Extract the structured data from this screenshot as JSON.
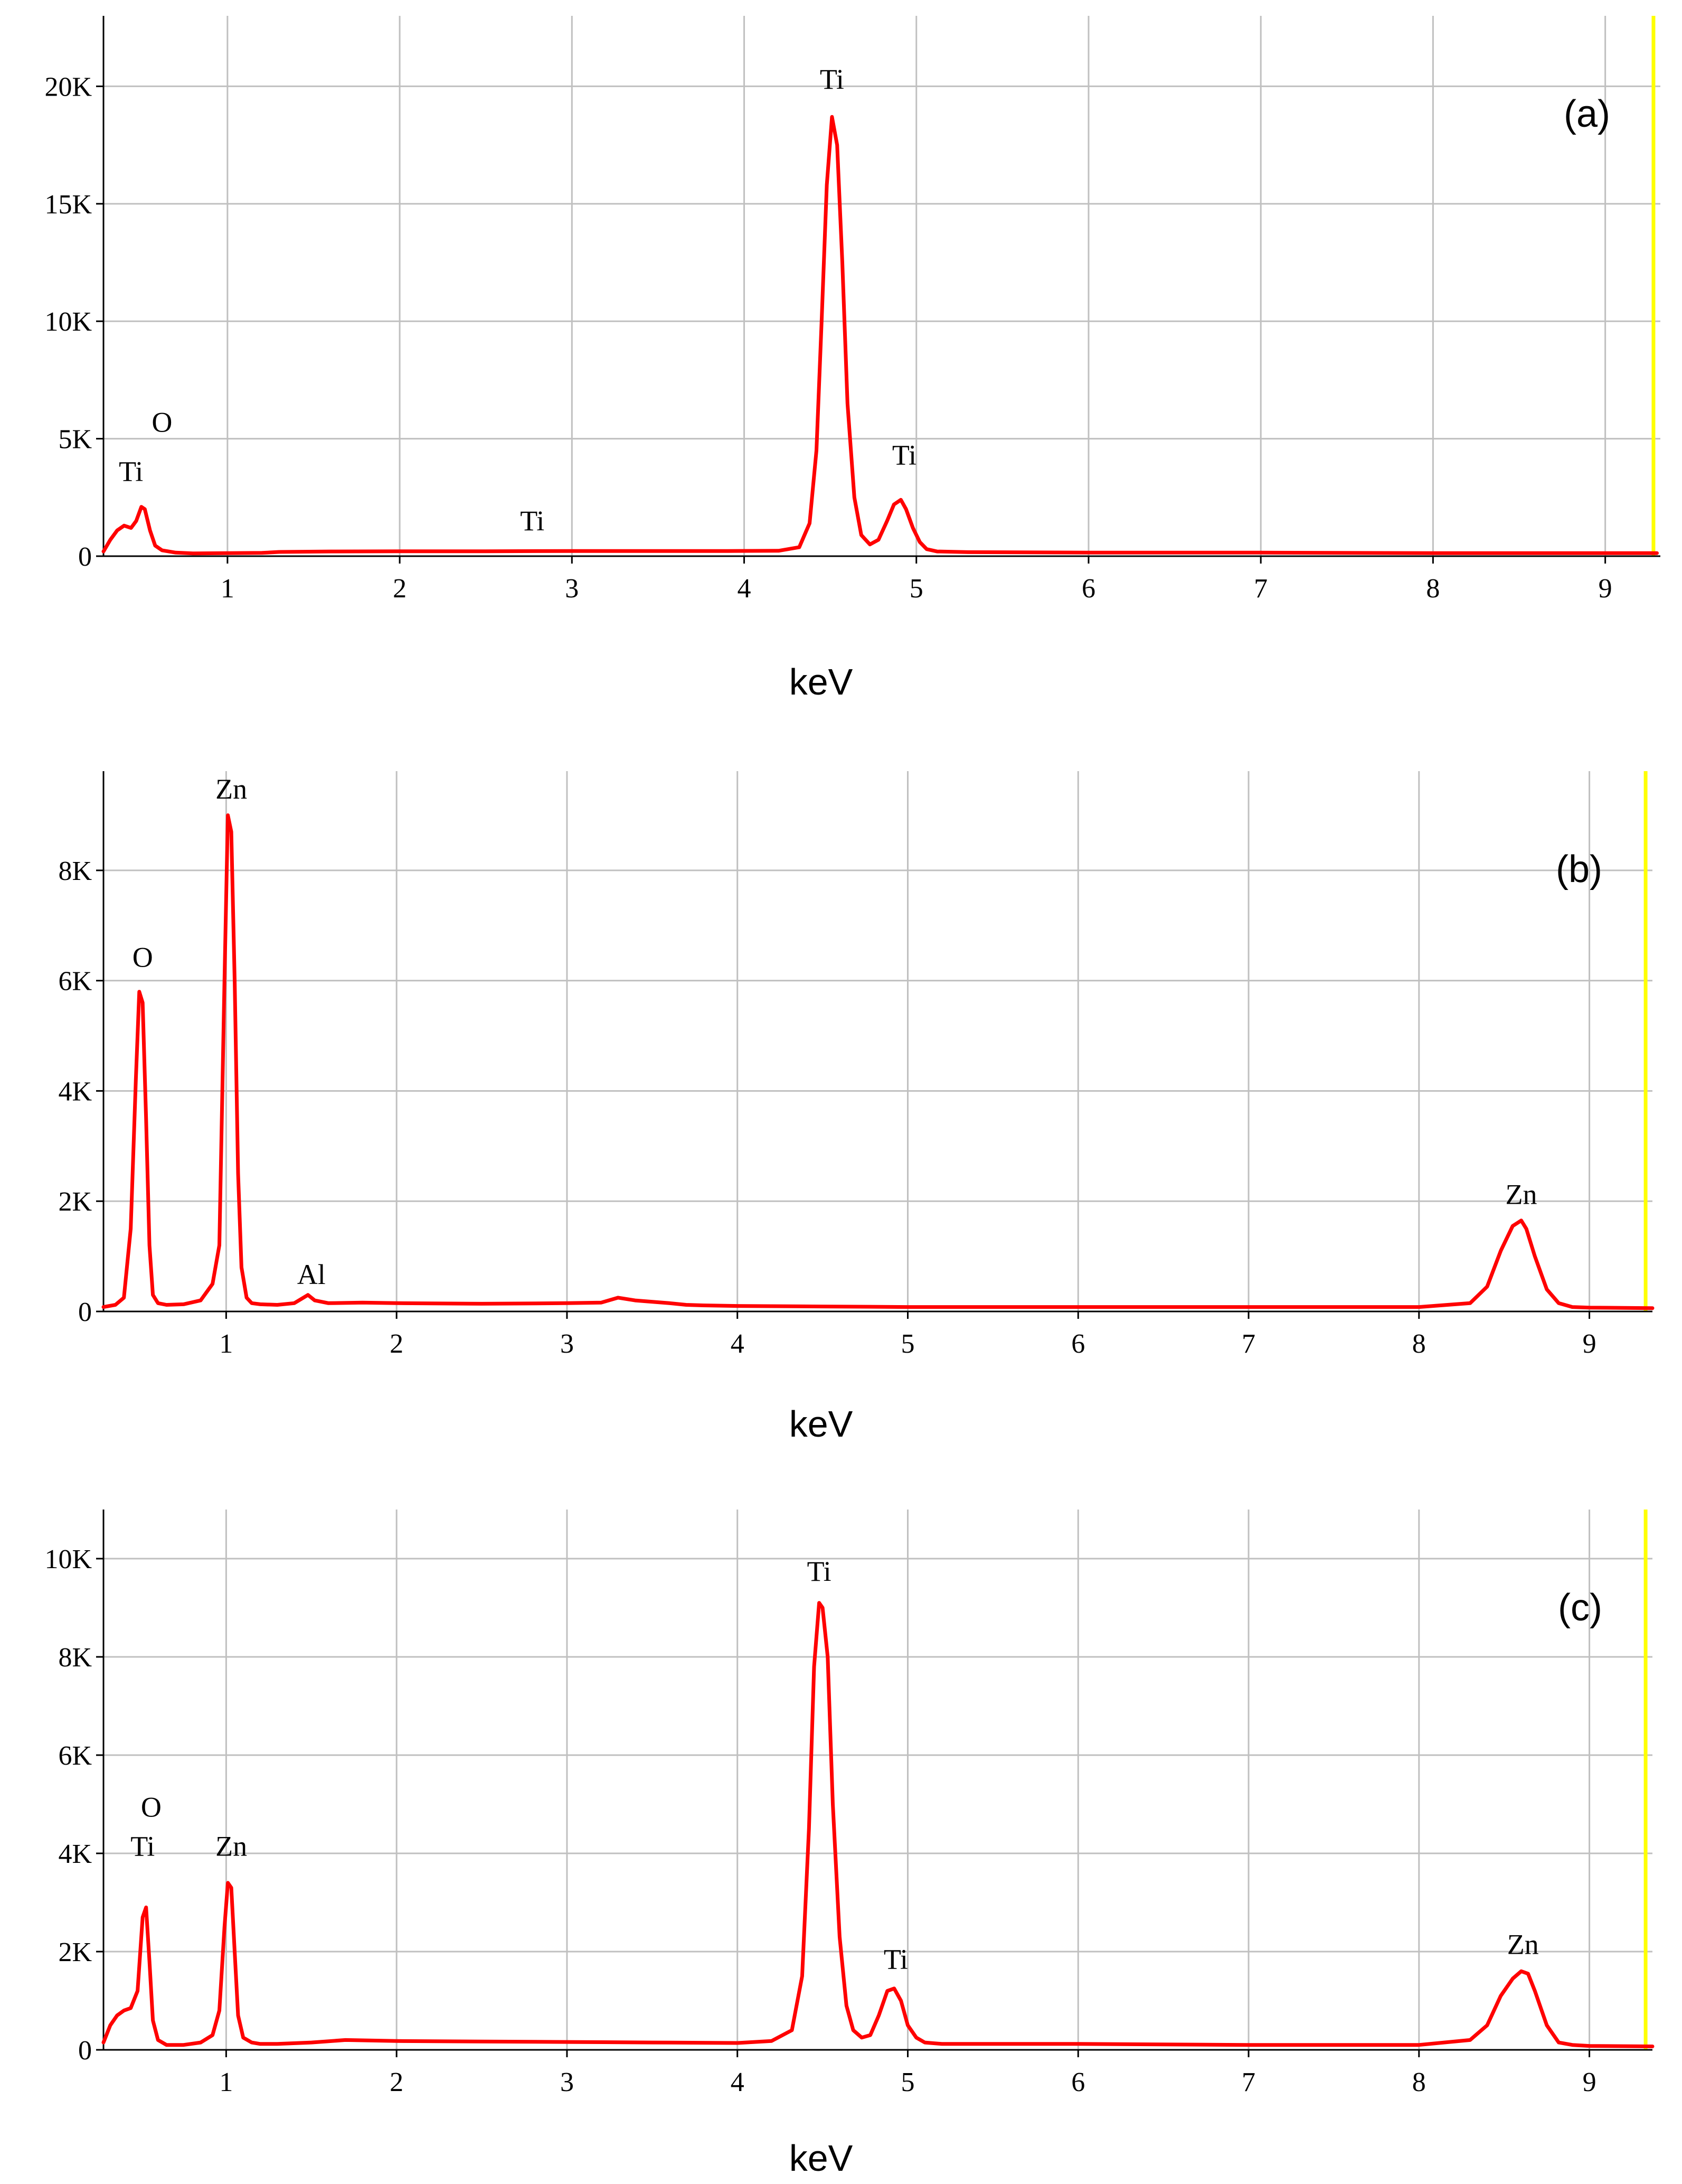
{
  "figure": {
    "background": "#ffffff"
  },
  "style": {
    "line_color": "#ff0000",
    "grid_color": "#c0c0c0",
    "axis_color": "#000000",
    "end_marker_color": "#ffff00"
  },
  "chart_data": [
    {
      "type": "line",
      "panel_label": "(a)",
      "xlabel": "keV",
      "ylabel": "",
      "xlim": [
        0.28,
        9.32
      ],
      "ylim": [
        0,
        23000
      ],
      "xticks": [
        1,
        2,
        3,
        4,
        5,
        6,
        7,
        8,
        9
      ],
      "xtick_labels": [
        "1",
        "2",
        "3",
        "4",
        "5",
        "6",
        "7",
        "8",
        "9"
      ],
      "yticks": [
        0,
        5000,
        10000,
        15000,
        20000
      ],
      "ytick_labels": [
        "0",
        "5K",
        "10K",
        "15K",
        "20K"
      ],
      "grid": true,
      "end_marker_kev": 9.28,
      "series": [
        {
          "x": [
            0.28,
            0.32,
            0.36,
            0.4,
            0.44,
            0.47,
            0.5,
            0.52,
            0.55,
            0.58,
            0.62,
            0.7,
            0.8,
            1.0,
            1.2,
            1.3,
            1.6,
            2.0,
            2.5,
            3.0,
            3.5,
            3.9,
            4.2,
            4.32,
            4.38,
            4.42,
            4.45,
            4.48,
            4.51,
            4.54,
            4.57,
            4.6,
            4.64,
            4.68,
            4.73,
            4.78,
            4.83,
            4.87,
            4.91,
            4.94,
            4.98,
            5.02,
            5.06,
            5.12,
            5.3,
            6.0,
            7.0,
            8.0,
            9.0,
            9.3
          ],
          "y": [
            200,
            700,
            1100,
            1300,
            1200,
            1500,
            2100,
            2000,
            1100,
            450,
            250,
            150,
            120,
            130,
            140,
            180,
            200,
            210,
            210,
            220,
            220,
            220,
            230,
            380,
            1400,
            4500,
            10000,
            15800,
            18700,
            17500,
            12500,
            6500,
            2500,
            900,
            500,
            700,
            1500,
            2200,
            2400,
            2000,
            1200,
            600,
            300,
            200,
            170,
            150,
            150,
            130,
            130,
            130
          ]
        }
      ],
      "annotations": [
        {
          "text": "Ti",
          "x": 4.51,
          "y": 19900
        },
        {
          "text": "Ti",
          "x": 4.93,
          "y": 3900
        },
        {
          "text": "O",
          "x": 0.62,
          "y": 5300
        },
        {
          "text": "Ti",
          "x": 0.44,
          "y": 3200
        },
        {
          "text": "Ti",
          "x": 2.77,
          "y": 1100
        }
      ]
    },
    {
      "type": "line",
      "panel_label": "(b)",
      "xlabel": "keV",
      "ylabel": "",
      "xlim": [
        0.28,
        9.37
      ],
      "ylim": [
        0,
        9800
      ],
      "xticks": [
        1,
        2,
        3,
        4,
        5,
        6,
        7,
        8,
        9
      ],
      "xtick_labels": [
        "1",
        "2",
        "3",
        "4",
        "5",
        "6",
        "7",
        "8",
        "9"
      ],
      "yticks": [
        0,
        2000,
        4000,
        6000,
        8000
      ],
      "ytick_labels": [
        "0",
        "2K",
        "4K",
        "6K",
        "8K"
      ],
      "grid": true,
      "end_marker_kev": 9.33,
      "series": [
        {
          "x": [
            0.28,
            0.35,
            0.4,
            0.44,
            0.47,
            0.49,
            0.51,
            0.53,
            0.55,
            0.57,
            0.6,
            0.65,
            0.75,
            0.85,
            0.92,
            0.96,
            0.99,
            1.01,
            1.03,
            1.05,
            1.07,
            1.09,
            1.12,
            1.15,
            1.2,
            1.3,
            1.4,
            1.48,
            1.52,
            1.6,
            1.8,
            2.0,
            2.5,
            3.0,
            3.2,
            3.3,
            3.4,
            3.6,
            3.7,
            3.8,
            4.0,
            4.5,
            5.0,
            6.0,
            7.0,
            8.0,
            8.3,
            8.4,
            8.48,
            8.55,
            8.6,
            8.63,
            8.68,
            8.75,
            8.82,
            8.9,
            9.0,
            9.37
          ],
          "y": [
            80,
            120,
            250,
            1500,
            4200,
            5800,
            5600,
            3500,
            1200,
            300,
            150,
            120,
            130,
            200,
            500,
            1200,
            6000,
            9000,
            8700,
            6000,
            2500,
            800,
            250,
            150,
            130,
            120,
            150,
            300,
            200,
            150,
            160,
            150,
            140,
            150,
            160,
            250,
            200,
            150,
            120,
            110,
            100,
            90,
            80,
            80,
            80,
            80,
            150,
            450,
            1100,
            1550,
            1650,
            1500,
            1000,
            400,
            150,
            80,
            70,
            60
          ]
        }
      ],
      "annotations": [
        {
          "text": "Zn",
          "x": 1.03,
          "y": 9300
        },
        {
          "text": "O",
          "x": 0.51,
          "y": 6250
        },
        {
          "text": "Al",
          "x": 1.5,
          "y": 500
        },
        {
          "text": "Zn",
          "x": 8.6,
          "y": 1950
        }
      ]
    },
    {
      "type": "line",
      "panel_label": "(c)",
      "xlabel": "keV",
      "ylabel": "",
      "xlim": [
        0.28,
        9.37
      ],
      "ylim": [
        0,
        11000
      ],
      "xticks": [
        1,
        2,
        3,
        4,
        5,
        6,
        7,
        8,
        9
      ],
      "xtick_labels": [
        "1",
        "2",
        "3",
        "4",
        "5",
        "6",
        "7",
        "8",
        "9"
      ],
      "yticks": [
        0,
        2000,
        4000,
        6000,
        8000,
        10000
      ],
      "ytick_labels": [
        "0",
        "2K",
        "4K",
        "6K",
        "8K",
        "10K"
      ],
      "grid": true,
      "end_marker_kev": 9.33,
      "series": [
        {
          "x": [
            0.28,
            0.32,
            0.36,
            0.4,
            0.44,
            0.48,
            0.51,
            0.53,
            0.55,
            0.57,
            0.6,
            0.65,
            0.75,
            0.85,
            0.92,
            0.96,
            0.99,
            1.01,
            1.03,
            1.05,
            1.07,
            1.1,
            1.15,
            1.2,
            1.3,
            1.5,
            1.7,
            2.0,
            2.5,
            3.0,
            3.5,
            4.0,
            4.2,
            4.32,
            4.38,
            4.42,
            4.45,
            4.48,
            4.5,
            4.53,
            4.56,
            4.6,
            4.64,
            4.68,
            4.73,
            4.78,
            4.83,
            4.88,
            4.92,
            4.96,
            5.0,
            5.05,
            5.1,
            5.2,
            6.0,
            7.0,
            8.0,
            8.3,
            8.4,
            8.48,
            8.55,
            8.6,
            8.64,
            8.68,
            8.75,
            8.82,
            8.9,
            9.0,
            9.37
          ],
          "y": [
            150,
            500,
            700,
            800,
            850,
            1200,
            2700,
            2900,
            1800,
            600,
            200,
            100,
            100,
            150,
            300,
            800,
            2500,
            3400,
            3300,
            2000,
            700,
            250,
            150,
            120,
            120,
            150,
            200,
            180,
            170,
            160,
            150,
            140,
            180,
            400,
            1500,
            4500,
            7800,
            9100,
            9000,
            8000,
            5000,
            2300,
            900,
            400,
            250,
            300,
            700,
            1200,
            1250,
            1000,
            500,
            250,
            150,
            120,
            120,
            100,
            100,
            200,
            500,
            1100,
            1450,
            1600,
            1550,
            1200,
            500,
            150,
            100,
            80,
            70
          ]
        }
      ],
      "annotations": [
        {
          "text": "Ti",
          "x": 4.48,
          "y": 9550
        },
        {
          "text": "O",
          "x": 0.56,
          "y": 4750
        },
        {
          "text": "Ti",
          "x": 0.51,
          "y": 3950
        },
        {
          "text": "Zn",
          "x": 1.03,
          "y": 3950
        },
        {
          "text": "Ti",
          "x": 4.93,
          "y": 1650
        },
        {
          "text": "Zn",
          "x": 8.61,
          "y": 1950
        }
      ]
    }
  ]
}
